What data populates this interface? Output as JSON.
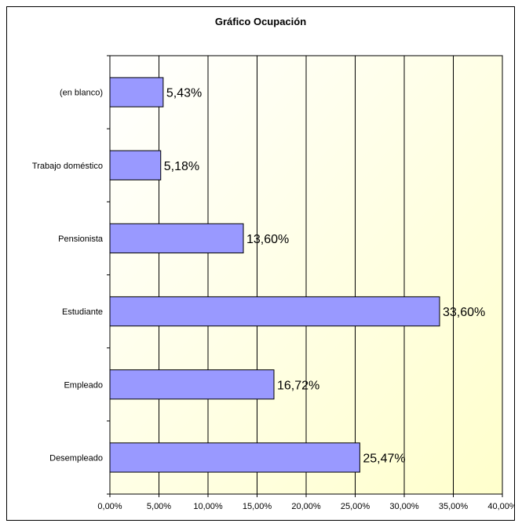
{
  "chart_data": {
    "type": "bar",
    "orientation": "horizontal",
    "title": "Gráfico Ocupación",
    "categories": [
      "(en blanco)",
      "Trabajo doméstico",
      "Pensionista",
      "Estudiante",
      "Empleado",
      "Desempleado"
    ],
    "values": [
      5.43,
      5.18,
      13.6,
      33.6,
      16.72,
      25.47
    ],
    "data_labels": [
      "5,43%",
      "5,18%",
      "13,60%",
      "33,60%",
      "16,72%",
      "25,47%"
    ],
    "xlim": [
      0,
      40
    ],
    "x_ticks": [
      0,
      5,
      10,
      15,
      20,
      25,
      30,
      35,
      40
    ],
    "x_tick_labels": [
      "0,00%",
      "5,00%",
      "10,00%",
      "15,00%",
      "20,00%",
      "25,00%",
      "30,00%",
      "35,00%",
      "40,00%"
    ],
    "xlabel": "",
    "ylabel": "",
    "grid": "vertical",
    "legend": "none",
    "colors": {
      "bar_fill": "#9999ff",
      "bar_stroke": "#000000",
      "plot_gradient_start": "#ffffff",
      "plot_gradient_end": "#ffffcc",
      "gridline": "#000000"
    }
  }
}
